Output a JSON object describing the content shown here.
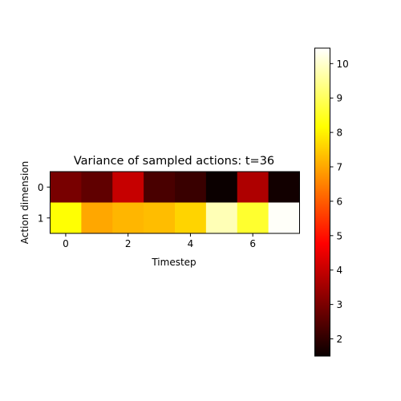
{
  "chart_data": {
    "type": "heatmap",
    "title": "Variance of sampled actions: t=36",
    "xlabel": "Timestep",
    "ylabel": "Action dimension",
    "x": [
      0,
      1,
      2,
      3,
      4,
      5,
      6,
      7
    ],
    "y": [
      0,
      1
    ],
    "x_ticks": [
      0,
      2,
      4,
      6
    ],
    "y_ticks": [
      0,
      1
    ],
    "values": [
      [
        2.9,
        2.6,
        3.9,
        2.3,
        2.1,
        1.5,
        3.6,
        1.6
      ],
      [
        8.2,
        7.0,
        7.2,
        7.3,
        7.6,
        9.8,
        8.6,
        10.4
      ]
    ],
    "colormap": "hot",
    "vmin": 1.5,
    "vmax": 10.45,
    "colorbar": {
      "ticks": [
        2,
        3,
        4,
        5,
        6,
        7,
        8,
        9,
        10
      ],
      "placement": "right"
    },
    "grid": false
  }
}
